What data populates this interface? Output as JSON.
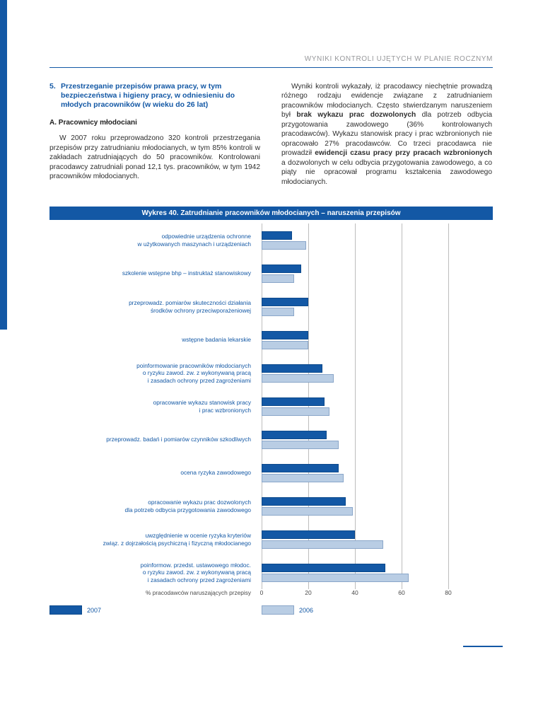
{
  "page": {
    "header": "WYNIKI KONTROLI UJĘTYCH W PLANIE ROCZNYM"
  },
  "section": {
    "heading_number": "5.",
    "heading": "Przestrzeganie przepisów prawa pracy, w tym bezpieczeństwa i higieny pracy, w odniesieniu do młodych pracowników (w wieku do 26 lat)",
    "subheading": "A. Pracownicy młodociani",
    "left_paragraph": "W 2007 roku przeprowadzono 320 kontroli przestrzegania przepisów przy zatrudnianiu młodocianych, w tym 85% kontroli w zakładach zatrudniających do 50 pracowników. Kontrolowani pracodawcy zatrudniali ponad 12,1 tys. pracowników, w tym 1942 pracowników młodocianych.",
    "right_paragraph": [
      {
        "text": "Wyniki kontroli wykazały, iż pracodawcy niechętnie prowadzą różnego rodzaju ewidencje związane z zatrudnianiem pracowników młodocianych. Często stwierdzanym naruszeniem był ",
        "bold": false
      },
      {
        "text": "brak wykazu prac dozwolonych",
        "bold": true
      },
      {
        "text": " dla potrzeb odbycia przygotowania zawodowego (36% kontrolowanych pracodawców). Wykazu stanowisk pracy i prac wzbronionych nie opracowało 27% pracodawców. Co trzeci pracodawca nie prowadził ",
        "bold": false
      },
      {
        "text": "ewidencji czasu pracy przy pracach wzbronionych",
        "bold": true
      },
      {
        "text": " a dozwolonych w celu odbycia przygotowania zawodowego, a co piąty nie opracował programu kształcenia zawodowego młodocianych.",
        "bold": false
      }
    ]
  },
  "chart_data": {
    "type": "bar",
    "orientation": "horizontal",
    "title": "Wykres 40. Zatrudnianie pracowników młodocianych – naruszenia przepisów",
    "categories": [
      "odpowiednie urządzenia ochronne\nw użytkowanych maszynach i urządzeniach",
      "szkolenie wstępne bhp – instruktaż stanowiskowy",
      "przeprowadz. pomiarów skuteczności działania\nśrodków ochrony przeciwporażeniowej",
      "wstępne badania lekarskie",
      "poinformowanie pracowników młodocianych\no ryzyku zawod. zw. z wykonywaną pracą\ni zasadach ochrony przed zagrożeniami",
      "opracowanie wykazu stanowisk pracy\ni prac wzbronionych",
      "przeprowadz. badań i pomiarów czynników szkodliwych",
      "ocena ryzyka zawodowego",
      "opracowanie wykazu prac dozwolonych\ndla potrzeb odbycia przygotowania zawodowego",
      "uwzględnienie w ocenie ryzyka kryteriów\nzwiąz. z dojrzałością psychiczną i fizyczną młodocianego",
      "poinformow. przedst. ustawowego młodoc.\no ryzyku zawod. zw. z wykonywaną pracą\ni zasadach ochrony przed zagrożeniami"
    ],
    "series": [
      {
        "name": "2007",
        "color": "#1358a5",
        "border": "#0d4a8c",
        "values": [
          13,
          17,
          20,
          20,
          26,
          27,
          28,
          33,
          36,
          40,
          53
        ]
      },
      {
        "name": "2006",
        "color": "#b9cde4",
        "border": "#8aa6c9",
        "values": [
          19,
          14,
          14,
          20,
          31,
          29,
          33,
          35,
          39,
          52,
          63
        ]
      }
    ],
    "xlim": [
      0,
      80
    ],
    "xticks": [
      0,
      20,
      40,
      60,
      80
    ],
    "xlabel": "% pracodawców naruszających przepisy",
    "legend_position": "bottom",
    "grid": "vertical"
  }
}
